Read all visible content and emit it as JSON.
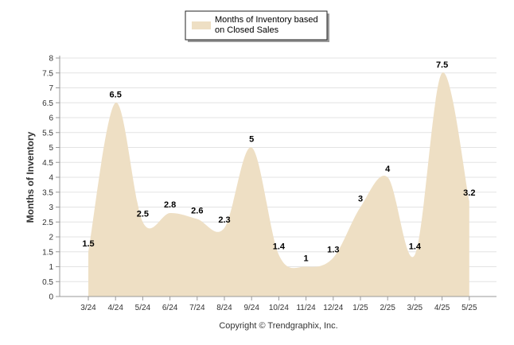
{
  "chart_data": {
    "type": "area",
    "categories": [
      "3/24",
      "4/24",
      "5/24",
      "6/24",
      "7/24",
      "8/24",
      "9/24",
      "10/24",
      "11/24",
      "12/24",
      "1/25",
      "2/25",
      "3/25",
      "4/25",
      "5/25"
    ],
    "series": [
      {
        "name": "Months of Inventory based on Closed Sales",
        "values": [
          1.5,
          6.5,
          2.5,
          2.8,
          2.6,
          2.3,
          5,
          1.4,
          1,
          1.3,
          3,
          4,
          1.4,
          7.5,
          3.2
        ],
        "labels": [
          "1.5",
          "6.5",
          "2.5",
          "2.8",
          "2.6",
          "2.3",
          "5",
          "1.4",
          "1",
          "1.3",
          "3",
          "4",
          "1.4",
          "7.5",
          "3.2"
        ]
      }
    ],
    "ylabel": "Months of Inventory",
    "ylim": [
      0,
      8
    ],
    "yticks": [
      "0",
      "0.5",
      "1",
      "1.5",
      "2",
      "2.5",
      "3",
      "3.5",
      "4",
      "4.5",
      "5",
      "5.5",
      "6",
      "6.5",
      "7",
      "7.5",
      "8"
    ],
    "legend": {
      "line1": "Months of Inventory based",
      "line2": "on Closed Sales",
      "placement": "top-center"
    },
    "grid": true,
    "colors": {
      "fill": "#EEDFC4",
      "grid": "#e3e3e3",
      "axis": "#999999"
    }
  },
  "footer": {
    "copyright": "Copyright © Trendgraphix, Inc."
  }
}
